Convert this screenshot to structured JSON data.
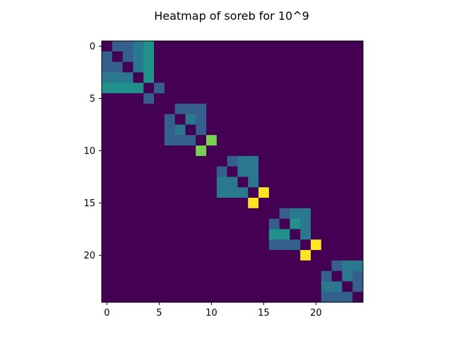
{
  "chart_data": {
    "type": "heatmap",
    "title": "Heatmap of soreb for 10^9",
    "xlabel": "",
    "ylabel": "",
    "colormap": "viridis",
    "grid": false,
    "nrows": 25,
    "ncols": 25,
    "value_range": [
      0,
      10
    ],
    "x_ticks": [
      0,
      5,
      10,
      15,
      20
    ],
    "y_ticks": [
      0,
      5,
      10,
      15,
      20
    ],
    "x_tick_labels": [
      "0",
      "5",
      "10",
      "15",
      "20"
    ],
    "y_tick_labels": [
      "0",
      "5",
      "10",
      "15",
      "20"
    ],
    "values": [
      [
        0,
        3,
        3,
        4,
        5,
        0,
        0,
        0,
        0,
        0,
        0,
        0,
        0,
        0,
        0,
        0,
        0,
        0,
        0,
        0,
        0,
        0,
        0,
        0,
        0
      ],
      [
        3,
        0,
        3,
        4,
        5,
        0,
        0,
        0,
        0,
        0,
        0,
        0,
        0,
        0,
        0,
        0,
        0,
        0,
        0,
        0,
        0,
        0,
        0,
        0,
        0
      ],
      [
        3,
        3,
        0,
        4,
        5,
        0,
        0,
        0,
        0,
        0,
        0,
        0,
        0,
        0,
        0,
        0,
        0,
        0,
        0,
        0,
        0,
        0,
        0,
        0,
        0
      ],
      [
        4,
        4,
        4,
        0,
        5,
        0,
        0,
        0,
        0,
        0,
        0,
        0,
        0,
        0,
        0,
        0,
        0,
        0,
        0,
        0,
        0,
        0,
        0,
        0,
        0
      ],
      [
        5,
        5,
        5,
        5,
        0,
        3,
        0,
        0,
        0,
        0,
        0,
        0,
        0,
        0,
        0,
        0,
        0,
        0,
        0,
        0,
        0,
        0,
        0,
        0,
        0
      ],
      [
        0,
        0,
        0,
        0,
        3,
        0,
        0,
        0,
        0,
        0,
        0,
        0,
        0,
        0,
        0,
        0,
        0,
        0,
        0,
        0,
        0,
        0,
        0,
        0,
        0
      ],
      [
        0,
        0,
        0,
        0,
        0,
        0,
        0,
        3,
        3,
        3,
        0,
        0,
        0,
        0,
        0,
        0,
        0,
        0,
        0,
        0,
        0,
        0,
        0,
        0,
        0
      ],
      [
        0,
        0,
        0,
        0,
        0,
        0,
        3,
        0,
        4,
        3,
        0,
        0,
        0,
        0,
        0,
        0,
        0,
        0,
        0,
        0,
        0,
        0,
        0,
        0,
        0
      ],
      [
        0,
        0,
        0,
        0,
        0,
        0,
        3,
        4,
        0,
        3,
        0,
        0,
        0,
        0,
        0,
        0,
        0,
        0,
        0,
        0,
        0,
        0,
        0,
        0,
        0
      ],
      [
        0,
        0,
        0,
        0,
        0,
        0,
        3,
        3,
        3,
        0,
        8,
        0,
        0,
        0,
        0,
        0,
        0,
        0,
        0,
        0,
        0,
        0,
        0,
        0,
        0
      ],
      [
        0,
        0,
        0,
        0,
        0,
        0,
        0,
        0,
        0,
        8,
        0,
        0,
        0,
        0,
        0,
        0,
        0,
        0,
        0,
        0,
        0,
        0,
        0,
        0,
        0
      ],
      [
        0,
        0,
        0,
        0,
        0,
        0,
        0,
        0,
        0,
        0,
        0,
        0,
        3,
        4,
        4,
        0,
        0,
        0,
        0,
        0,
        0,
        0,
        0,
        0,
        0
      ],
      [
        0,
        0,
        0,
        0,
        0,
        0,
        0,
        0,
        0,
        0,
        0,
        3,
        0,
        4,
        4,
        0,
        0,
        0,
        0,
        0,
        0,
        0,
        0,
        0,
        0
      ],
      [
        0,
        0,
        0,
        0,
        0,
        0,
        0,
        0,
        0,
        0,
        0,
        4,
        4,
        0,
        4,
        0,
        0,
        0,
        0,
        0,
        0,
        0,
        0,
        0,
        0
      ],
      [
        0,
        0,
        0,
        0,
        0,
        0,
        0,
        0,
        0,
        0,
        0,
        4,
        4,
        4,
        0,
        10,
        0,
        0,
        0,
        0,
        0,
        0,
        0,
        0,
        0
      ],
      [
        0,
        0,
        0,
        0,
        0,
        0,
        0,
        0,
        0,
        0,
        0,
        0,
        0,
        0,
        10,
        0,
        0,
        0,
        0,
        0,
        0,
        0,
        0,
        0,
        0
      ],
      [
        0,
        0,
        0,
        0,
        0,
        0,
        0,
        0,
        0,
        0,
        0,
        0,
        0,
        0,
        0,
        0,
        0,
        3,
        4,
        4,
        0,
        0,
        0,
        0,
        0
      ],
      [
        0,
        0,
        0,
        0,
        0,
        0,
        0,
        0,
        0,
        0,
        0,
        0,
        0,
        0,
        0,
        0,
        3,
        0,
        5,
        4,
        0,
        0,
        0,
        0,
        0
      ],
      [
        0,
        0,
        0,
        0,
        0,
        0,
        0,
        0,
        0,
        0,
        0,
        0,
        0,
        0,
        0,
        0,
        5,
        5,
        0,
        4,
        0,
        0,
        0,
        0,
        0
      ],
      [
        0,
        0,
        0,
        0,
        0,
        0,
        0,
        0,
        0,
        0,
        0,
        0,
        0,
        0,
        0,
        0,
        3,
        3,
        3,
        0,
        10,
        0,
        0,
        0,
        0
      ],
      [
        0,
        0,
        0,
        0,
        0,
        0,
        0,
        0,
        0,
        0,
        0,
        0,
        0,
        0,
        0,
        0,
        0,
        0,
        0,
        10,
        0,
        0,
        0,
        0,
        0
      ],
      [
        0,
        0,
        0,
        0,
        0,
        0,
        0,
        0,
        0,
        0,
        0,
        0,
        0,
        0,
        0,
        0,
        0,
        0,
        0,
        0,
        0,
        0,
        3,
        4,
        4
      ],
      [
        0,
        0,
        0,
        0,
        0,
        0,
        0,
        0,
        0,
        0,
        0,
        0,
        0,
        0,
        0,
        0,
        0,
        0,
        0,
        0,
        0,
        3,
        0,
        4,
        3
      ],
      [
        0,
        0,
        0,
        0,
        0,
        0,
        0,
        0,
        0,
        0,
        0,
        0,
        0,
        0,
        0,
        0,
        0,
        0,
        0,
        0,
        0,
        4,
        4,
        0,
        3
      ],
      [
        0,
        0,
        0,
        0,
        0,
        0,
        0,
        0,
        0,
        0,
        0,
        0,
        0,
        0,
        0,
        0,
        0,
        0,
        0,
        0,
        0,
        3,
        3,
        3,
        0
      ]
    ]
  }
}
